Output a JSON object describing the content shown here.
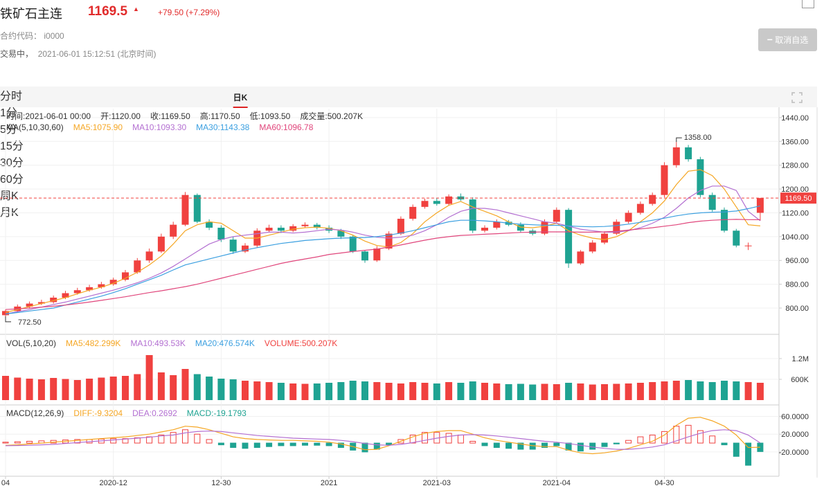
{
  "header": {
    "title": "铁矿石主连",
    "price": "1169.5",
    "change": "+79.50 (+7.29%)",
    "code_label": "合约代码：",
    "code": "i0000",
    "status": "交易中，",
    "time": "2021-06-01 15:12:51 (北京时间)",
    "button": "取消自选"
  },
  "tabs": [
    "分时",
    "1分",
    "5分",
    "15分",
    "30分",
    "60分",
    "日K",
    "周K",
    "月K"
  ],
  "active_tab": "日K",
  "chart_data": {
    "type": "candlestick",
    "info": [
      {
        "label": "时间:",
        "value": "2021-06-01 00:00"
      },
      {
        "label": "开:",
        "value": "1120.00"
      },
      {
        "label": "收:",
        "value": "1169.50"
      },
      {
        "label": "高:",
        "value": "1170.50"
      },
      {
        "label": "低:",
        "value": "1093.50"
      },
      {
        "label": "成交量:",
        "value": "500.207K"
      }
    ],
    "ma_title": "MA(5,10,30,60)",
    "ma": [
      {
        "label": "MA5:1075.90",
        "color": "#f5a623",
        "values": [
          785,
          795,
          805,
          815,
          825,
          835,
          848,
          860,
          870,
          883,
          900,
          920,
          945,
          975,
          1015,
          1060,
          1080,
          1090,
          1085,
          1060,
          1035,
          1035,
          1045,
          1055,
          1065,
          1070,
          1072,
          1068,
          1060,
          1045,
          1025,
          1010,
          1005,
          1020,
          1050,
          1090,
          1120,
          1145,
          1158,
          1140,
          1125,
          1110,
          1090,
          1072,
          1070,
          1075,
          1085,
          1060,
          1045,
          1035,
          1030,
          1040,
          1060,
          1090,
          1120,
          1160,
          1215,
          1260,
          1265,
          1245,
          1200,
          1140,
          1080,
          1075.9
        ]
      },
      {
        "label": "MA10:1093.30",
        "color": "#b36fd1",
        "values": [
          780,
          788,
          795,
          803,
          812,
          820,
          830,
          840,
          850,
          860,
          872,
          885,
          900,
          918,
          940,
          965,
          990,
          1015,
          1030,
          1040,
          1045,
          1050,
          1055,
          1055,
          1052,
          1055,
          1060,
          1065,
          1062,
          1055,
          1045,
          1038,
          1035,
          1038,
          1045,
          1060,
          1080,
          1105,
          1125,
          1135,
          1135,
          1130,
          1120,
          1110,
          1100,
          1090,
          1085,
          1075,
          1065,
          1060,
          1055,
          1055,
          1060,
          1070,
          1085,
          1105,
          1135,
          1170,
          1195,
          1210,
          1210,
          1195,
          1125,
          1093.3
        ]
      },
      {
        "label": "MA30:1143.38",
        "color": "#3a9fe0",
        "values": [
          780,
          785,
          790,
          795,
          800,
          810,
          820,
          830,
          840,
          852,
          865,
          880,
          895,
          910,
          928,
          945,
          955,
          965,
          975,
          985,
          995,
          1003,
          1010,
          1017,
          1022,
          1027,
          1030,
          1033,
          1035,
          1036,
          1037,
          1040,
          1045,
          1052,
          1060,
          1070,
          1080,
          1090,
          1095,
          1095,
          1093,
          1090,
          1085,
          1082,
          1080,
          1078,
          1078,
          1076,
          1074,
          1073,
          1074,
          1077,
          1082,
          1088,
          1095,
          1102,
          1110,
          1116,
          1120,
          1122,
          1123,
          1126,
          1134,
          1143.38
        ]
      },
      {
        "label": "MA60:1096.78",
        "color": "#e0457b",
        "values": [
          795,
          797,
          800,
          803,
          806,
          810,
          815,
          820,
          826,
          832,
          838,
          845,
          852,
          858,
          865,
          872,
          880,
          890,
          900,
          910,
          920,
          930,
          940,
          950,
          958,
          965,
          972,
          980,
          985,
          990,
          994,
          998,
          1005,
          1012,
          1020,
          1028,
          1035,
          1040,
          1044,
          1046,
          1048,
          1050,
          1052,
          1054,
          1055,
          1056,
          1056,
          1056,
          1055,
          1055,
          1056,
          1058,
          1062,
          1066,
          1070,
          1075,
          1080,
          1087,
          1092,
          1095,
          1097,
          1098,
          1097,
          1096.78
        ]
      }
    ],
    "categories": [
      "04",
      null,
      null,
      null,
      null,
      null,
      null,
      null,
      null,
      "2020-12",
      null,
      null,
      null,
      null,
      null,
      null,
      null,
      null,
      "12-30",
      null,
      null,
      null,
      null,
      null,
      null,
      null,
      null,
      "2021",
      null,
      null,
      null,
      null,
      null,
      null,
      null,
      null,
      "2021-03",
      null,
      null,
      null,
      null,
      null,
      null,
      null,
      null,
      null,
      "2021-04",
      null,
      null,
      null,
      null,
      null,
      null,
      null,
      null,
      "04-30",
      null,
      null,
      null,
      null,
      null,
      null,
      null,
      null
    ],
    "open": [
      776,
      790,
      805,
      815,
      820,
      835,
      850,
      860,
      870,
      880,
      895,
      920,
      960,
      990,
      1040,
      1080,
      1180,
      1090,
      1070,
      1030,
      990,
      1010,
      1060,
      1070,
      1060,
      1075,
      1080,
      1070,
      1060,
      1040,
      990,
      960,
      1000,
      1050,
      1100,
      1140,
      1160,
      1150,
      1175,
      1165,
      1060,
      1070,
      1090,
      1080,
      1060,
      1050,
      1090,
      1130,
      950,
      990,
      1020,
      1050,
      1090,
      1120,
      1150,
      1180,
      1280,
      1340,
      1300,
      1180,
      1130,
      1060,
      1010,
      1120
    ],
    "high": [
      795,
      812,
      822,
      828,
      842,
      858,
      868,
      878,
      888,
      902,
      928,
      968,
      1000,
      1050,
      1090,
      1190,
      1185,
      1098,
      1078,
      1040,
      1018,
      1068,
      1080,
      1078,
      1082,
      1088,
      1086,
      1078,
      1066,
      1046,
      995,
      1008,
      1058,
      1108,
      1148,
      1168,
      1170,
      1182,
      1185,
      1172,
      1078,
      1098,
      1096,
      1088,
      1066,
      1098,
      1138,
      1136,
      995,
      1028,
      1058,
      1098,
      1128,
      1158,
      1188,
      1290,
      1358,
      1348,
      1308,
      1188,
      1138,
      1066,
      1020,
      1170.5
    ],
    "low": [
      772.5,
      785,
      798,
      810,
      815,
      830,
      845,
      855,
      865,
      875,
      890,
      915,
      952,
      985,
      1032,
      1075,
      1085,
      1062,
      1022,
      982,
      985,
      1004,
      1055,
      1052,
      1055,
      1070,
      1064,
      1052,
      1032,
      985,
      952,
      955,
      995,
      1045,
      1094,
      1134,
      1144,
      1145,
      1160,
      1052,
      1054,
      1064,
      1075,
      1054,
      1044,
      1045,
      1084,
      935,
      945,
      984,
      1014,
      1045,
      1084,
      1114,
      1144,
      1172,
      1272,
      1292,
      1172,
      1124,
      1054,
      1004,
      995,
      1093.5
    ],
    "close": [
      790,
      805,
      815,
      820,
      835,
      850,
      860,
      870,
      880,
      895,
      920,
      960,
      990,
      1040,
      1080,
      1180,
      1090,
      1070,
      1030,
      990,
      1010,
      1060,
      1070,
      1060,
      1075,
      1080,
      1070,
      1060,
      1040,
      990,
      960,
      1000,
      1050,
      1100,
      1140,
      1160,
      1150,
      1175,
      1165,
      1060,
      1070,
      1090,
      1080,
      1060,
      1050,
      1090,
      1130,
      950,
      990,
      1020,
      1050,
      1090,
      1120,
      1150,
      1180,
      1280,
      1340,
      1300,
      1180,
      1130,
      1060,
      1010,
      1010,
      1169.5
    ],
    "up_color": "#f0413f",
    "down_color": "#1fa392",
    "ylim": [
      714,
      1463
    ],
    "yticks": [
      {
        "value": 800,
        "label": "800.00"
      },
      {
        "value": 880,
        "label": "880.00"
      },
      {
        "value": 960,
        "label": "960.00"
      },
      {
        "value": 1040,
        "label": "1040.00"
      },
      {
        "value": 1120,
        "label": "1120.00"
      },
      {
        "value": 1200,
        "label": "1200.00"
      },
      {
        "value": 1280,
        "label": "1280.00"
      },
      {
        "value": 1360,
        "label": "1360.00"
      },
      {
        "value": 1440,
        "label": "1440.00"
      }
    ],
    "grid": true,
    "high_label": "1358.00",
    "low_label": "772.50",
    "last_price_label": "1169.50",
    "volume": {
      "title": "VOL(5,10,20)",
      "legend": [
        {
          "label": "MA5:482.299K",
          "color": "#f5a623"
        },
        {
          "label": "MA10:493.53K",
          "color": "#b36fd1"
        },
        {
          "label": "MA20:476.574K",
          "color": "#3a9fe0"
        },
        {
          "label": "VOLUME:500.207K",
          "color": "#f0413f"
        }
      ],
      "values": [
        700000,
        650000,
        620000,
        600000,
        640000,
        610000,
        580000,
        620000,
        650000,
        680000,
        700000,
        750000,
        1300000,
        800000,
        720000,
        900000,
        750000,
        680000,
        620000,
        600000,
        560000,
        540000,
        520000,
        500000,
        480000,
        470000,
        480000,
        500000,
        520000,
        560000,
        540000,
        520000,
        500000,
        480000,
        520000,
        500000,
        480000,
        520000,
        500000,
        540000,
        500000,
        480000,
        460000,
        470000,
        450000,
        470000,
        460000,
        500000,
        480000,
        450000,
        460000,
        470000,
        480000,
        500000,
        520000,
        540000,
        560000,
        580000,
        540000,
        520000,
        560000,
        540000,
        520000,
        500207
      ],
      "ylim": [
        0,
        1800000
      ],
      "yticks": [
        {
          "value": 600000,
          "label": "600K"
        },
        {
          "value": 1200000,
          "label": "1.2M"
        }
      ]
    },
    "macd": {
      "title": "MACD(12,26,9)",
      "diff": {
        "label": "DIFF:-9.3204",
        "color": "#f5a623",
        "values": [
          -5,
          -4,
          -2,
          0,
          2,
          4,
          6,
          8,
          10,
          12,
          14,
          17,
          20,
          25,
          30,
          38,
          36,
          30,
          22,
          14,
          10,
          8,
          7,
          6,
          6,
          5,
          4,
          2,
          -2,
          -8,
          -15,
          -14,
          -6,
          4,
          14,
          22,
          26,
          28,
          28,
          20,
          12,
          6,
          2,
          -2,
          -6,
          -8,
          -8,
          -16,
          -22,
          -24,
          -22,
          -18,
          -12,
          -4,
          4,
          18,
          40,
          56,
          58,
          50,
          38,
          18,
          -10,
          -9.3204
        ]
      },
      "dea": {
        "label": "DEA:0.2692",
        "color": "#b36fd1",
        "values": [
          -6,
          -5.5,
          -5,
          -4,
          -3,
          -1,
          1,
          3,
          5,
          7,
          9,
          11,
          13,
          16,
          18,
          23,
          26,
          27,
          26,
          23,
          20,
          17,
          15,
          13,
          11,
          10,
          9,
          8,
          6,
          3,
          -1,
          -4,
          -5,
          -3,
          1,
          6,
          11,
          15,
          18,
          19,
          18,
          16,
          13,
          10,
          7,
          4,
          2,
          -1,
          -5,
          -9,
          -12,
          -14,
          -14,
          -12,
          -9,
          -4,
          5,
          14,
          22,
          28,
          30,
          28,
          18,
          0.2692
        ]
      },
      "hist": {
        "label": "MACD:-19.1793",
        "color": "#1fa392",
        "values": [
          2,
          3,
          4,
          5,
          6,
          7,
          8,
          8,
          9,
          10,
          10,
          12,
          14,
          18,
          24,
          30,
          20,
          8,
          -4,
          -10,
          -12,
          -10,
          -8,
          -6,
          -6,
          -5,
          -5,
          -6,
          -10,
          -16,
          -20,
          -14,
          -4,
          8,
          18,
          24,
          24,
          22,
          18,
          4,
          -6,
          -10,
          -12,
          -14,
          -14,
          -10,
          -6,
          -16,
          -18,
          -14,
          -8,
          -2,
          6,
          14,
          18,
          26,
          38,
          40,
          28,
          16,
          -4,
          -30,
          -50,
          -19.1793
        ]
      },
      "ylim": [
        -70,
        78
      ],
      "yticks": [
        {
          "value": -20,
          "label": "-20.0000"
        },
        {
          "value": 20,
          "label": "20.0000"
        },
        {
          "value": 60,
          "label": "60.0000"
        }
      ]
    }
  }
}
